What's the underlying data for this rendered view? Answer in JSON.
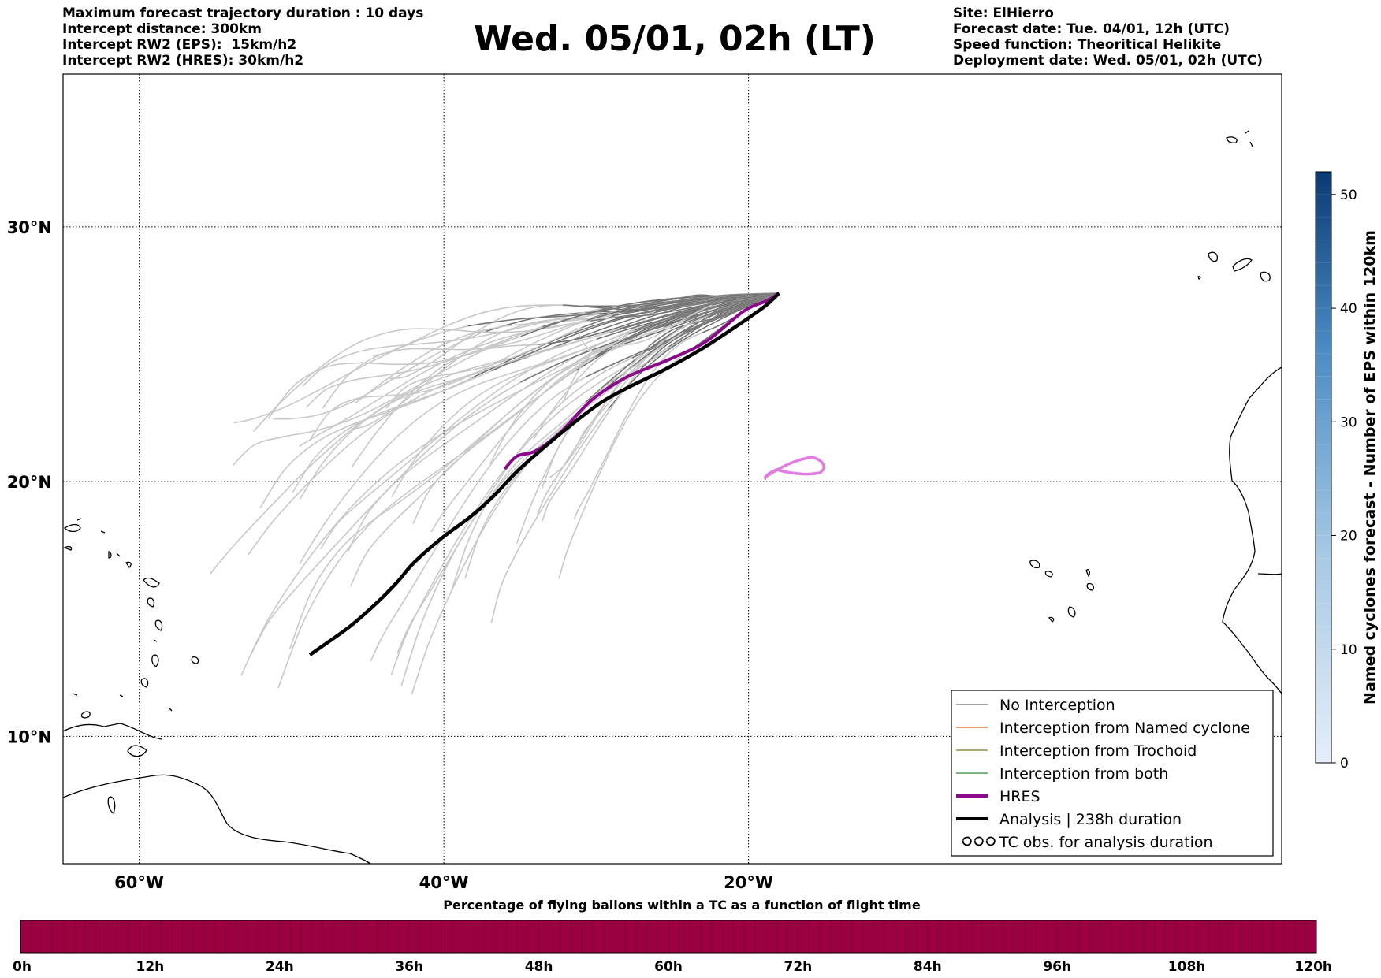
{
  "header": {
    "left_lines": [
      "Maximum forecast trajectory duration : 10 days",
      "Intercept distance: 300km",
      "Intercept RW2 (EPS):  15km/h2",
      "Intercept RW2 (HRES): 30km/h2"
    ],
    "title": "Wed. 05/01, 02h (LT)",
    "right_lines": [
      "Site: ElHierro",
      "Forecast date: Tue. 04/01, 12h (UTC)",
      "Speed function: Theoritical Helikite",
      "Deployment date: Wed. 05/01, 02h (UTC)"
    ]
  },
  "map": {
    "lon_range": [
      -65,
      15
    ],
    "lat_range": [
      5,
      36
    ],
    "lon_ticks": [
      {
        "value": -60,
        "label": "60°W"
      },
      {
        "value": -40,
        "label": "40°W"
      },
      {
        "value": -20,
        "label": "20°W"
      }
    ],
    "lat_ticks": [
      {
        "value": 30,
        "label": "30°N"
      },
      {
        "value": 20,
        "label": "20°N"
      },
      {
        "value": 10,
        "label": "10°N"
      }
    ],
    "grid": true,
    "colors": {
      "no_interception": "#707070",
      "no_interception_faint": "#c8c8c8",
      "named_cyclone": "#e8561c",
      "trochoid": "#7a7a1c",
      "both": "#2e8b2e",
      "hres": "#8b0a8b",
      "hres_late": "#e27ce2",
      "analysis": "#000000"
    },
    "analysis_track": [
      [
        -48.8,
        13.2
      ],
      [
        -46.2,
        14.3
      ],
      [
        -44.3,
        15.3
      ],
      [
        -43.0,
        16.1
      ],
      [
        -42.0,
        16.8
      ],
      [
        -40.1,
        17.8
      ],
      [
        -38.3,
        18.6
      ],
      [
        -36.8,
        19.4
      ],
      [
        -35.2,
        20.4
      ],
      [
        -33.5,
        21.3
      ],
      [
        -31.7,
        22.2
      ],
      [
        -29.7,
        23.1
      ],
      [
        -27.9,
        23.7
      ],
      [
        -25.5,
        24.4
      ],
      [
        -23.1,
        25.2
      ],
      [
        -20.8,
        26.1
      ],
      [
        -18.9,
        26.9
      ],
      [
        -18.0,
        27.4
      ]
    ],
    "hres_track": [
      [
        -36.0,
        20.5
      ],
      [
        -35.2,
        21.0
      ],
      [
        -34.0,
        21.2
      ],
      [
        -32.4,
        21.9
      ],
      [
        -30.3,
        23.2
      ],
      [
        -28.0,
        24.1
      ],
      [
        -25.2,
        24.8
      ],
      [
        -22.8,
        25.5
      ],
      [
        -20.3,
        26.7
      ],
      [
        -18.8,
        27.1
      ],
      [
        -18.0,
        27.4
      ]
    ]
  },
  "legend": {
    "items": [
      {
        "label": "No Interception",
        "kind": "thin",
        "color": "#707070"
      },
      {
        "label": "Interception from Named cyclone",
        "kind": "thin",
        "color": "#e8561c"
      },
      {
        "label": "Interception from Trochoid",
        "kind": "thin",
        "color": "#7a7a1c"
      },
      {
        "label": "Interception from both",
        "kind": "thin",
        "color": "#2e8b2e"
      },
      {
        "label": "HRES",
        "kind": "thick",
        "color": "#8b0a8b"
      },
      {
        "label": "Analysis | 238h duration",
        "kind": "thick",
        "color": "#000000"
      },
      {
        "label": "TC obs. for analysis duration",
        "kind": "tc",
        "color": "#000000"
      }
    ]
  },
  "colorbar_right": {
    "label": "Named cyclones forecast - Number of EPS within 120km",
    "min": 0,
    "max": 52,
    "ticks": [
      "0",
      "10",
      "20",
      "30",
      "40",
      "50"
    ],
    "color_low": "#e4eef9",
    "color_high": "#0b3a74"
  },
  "colorbar_bottom": {
    "title": "Percentage of flying ballons within a TC as a function of flight time",
    "ticks": [
      "0h",
      "12h",
      "24h",
      "36h",
      "48h",
      "60h",
      "72h",
      "84h",
      "96h",
      "108h",
      "120h"
    ],
    "fill_color": "#9b0040"
  }
}
